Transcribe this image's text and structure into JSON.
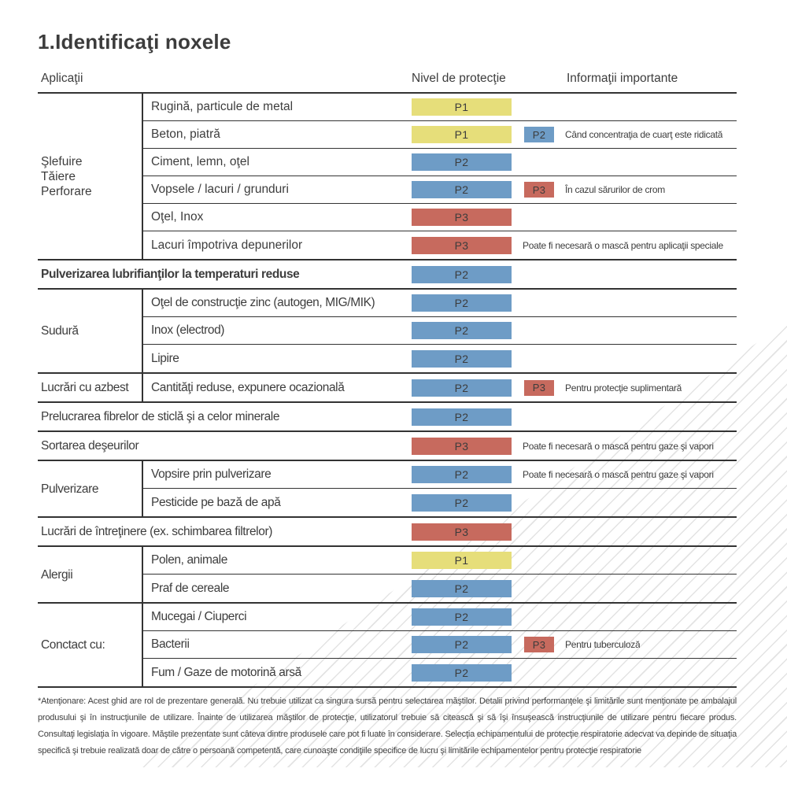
{
  "title": "1.Identificaţi noxele",
  "colors": {
    "P1": "#e6de7a",
    "P2": "#6e9cc6",
    "P3": "#c76a5e"
  },
  "columns": {
    "applications": "Aplicaţii",
    "protection_level": "Nivel de protecţie",
    "important_info": "Informaţii importante"
  },
  "sections": [
    {
      "group_label": [
        "Şlefuire",
        "Tăiere",
        "Perforare"
      ],
      "rows": [
        {
          "application": "Rugină, particule de metal",
          "level": "P1"
        },
        {
          "application": "Beton, piatră",
          "level": "P1",
          "extra_level": "P2",
          "info": "Când concentraţia de cuarţ este ridicată"
        },
        {
          "application": "Ciment, lemn, oţel",
          "level": "P2"
        },
        {
          "application": "Vopsele / lacuri / grunduri",
          "level": "P2",
          "extra_level": "P3",
          "info": "În cazul sărurilor de crom"
        },
        {
          "application": "Oţel, Inox",
          "level": "P3"
        },
        {
          "application": "Lacuri împotriva depunerilor",
          "level": "P3",
          "info": "Poate fi necesară o mască pentru aplicaţii speciale"
        }
      ]
    },
    {
      "group_label": null,
      "rows": [
        {
          "application": "Pulverizarea lubrifianţilor la temperaturi reduse",
          "level": "P2",
          "bold": true
        }
      ]
    },
    {
      "group_label": [
        "Sudură"
      ],
      "rows": [
        {
          "application": "Oţel de construcţie zinc (autogen, MIG/MIK)",
          "level": "P2"
        },
        {
          "application": "Inox (electrod)",
          "level": "P2"
        },
        {
          "application": "Lipire",
          "level": "P2"
        }
      ]
    },
    {
      "group_label": [
        "Lucrări cu azbest"
      ],
      "rows": [
        {
          "application": "Cantităţi reduse, expunere ocazională",
          "level": "P2",
          "extra_level": "P3",
          "info": "Pentru protecţie suplimentară"
        }
      ]
    },
    {
      "group_label": null,
      "rows": [
        {
          "application": "Prelucrarea fibrelor de sticlă şi a celor minerale",
          "level": "P2"
        }
      ]
    },
    {
      "group_label": null,
      "rows": [
        {
          "application": "Sortarea deşeurilor",
          "level": "P3",
          "info": "Poate fi necesară o mască pentru gaze şi vapori"
        }
      ]
    },
    {
      "group_label": [
        "Pulverizare"
      ],
      "rows": [
        {
          "application": "Vopsire prin pulverizare",
          "level": "P2",
          "info": "Poate fi necesară o mască pentru gaze şi vapori"
        },
        {
          "application": "Pesticide pe bază de apă",
          "level": "P2"
        }
      ]
    },
    {
      "group_label": null,
      "rows": [
        {
          "application": "Lucrări de întreţinere (ex. schimbarea filtrelor)",
          "level": "P3"
        }
      ]
    },
    {
      "group_label": [
        "Alergii"
      ],
      "rows": [
        {
          "application": "Polen, animale",
          "level": "P1"
        },
        {
          "application": "Praf de cereale",
          "level": "P2"
        }
      ]
    },
    {
      "group_label": [
        "Conctact cu:"
      ],
      "rows": [
        {
          "application": "Mucegai / Ciuperci",
          "level": "P2"
        },
        {
          "application": "Bacterii",
          "level": "P2",
          "extra_level": "P3",
          "info": "Pentru tuberculoză"
        },
        {
          "application": "Fum / Gaze de motorină arsă",
          "level": "P2"
        }
      ]
    }
  ],
  "footnote": "*Atenţionare: Acest ghid are rol de prezentare generală. Nu trebuie utilizat ca singura sursă pentru selectarea măştilor. Detalii privind performanţele şi limitările sunt menţionate pe ambalajul produsului şi în instrucţiunile de utilizare. Înainte de utilizarea măştilor de protecţie, utilizatorul trebuie să citească şi să îşi însuşească instrucţiunile de utilizare pentru fiecare produs. Consultaţi legislaţia în vigoare. Măştile prezentate sunt câteva dintre produsele care pot fi luate în considerare. Selecţia echipamentului de protecţie respiratorie adecvat va depinde de situaţia specifică şi trebuie realizată doar de către o persoană competentă, care cunoaşte condiţiile specifice de lucru şi limitările echipamentelor pentru protecţie respiratorie"
}
